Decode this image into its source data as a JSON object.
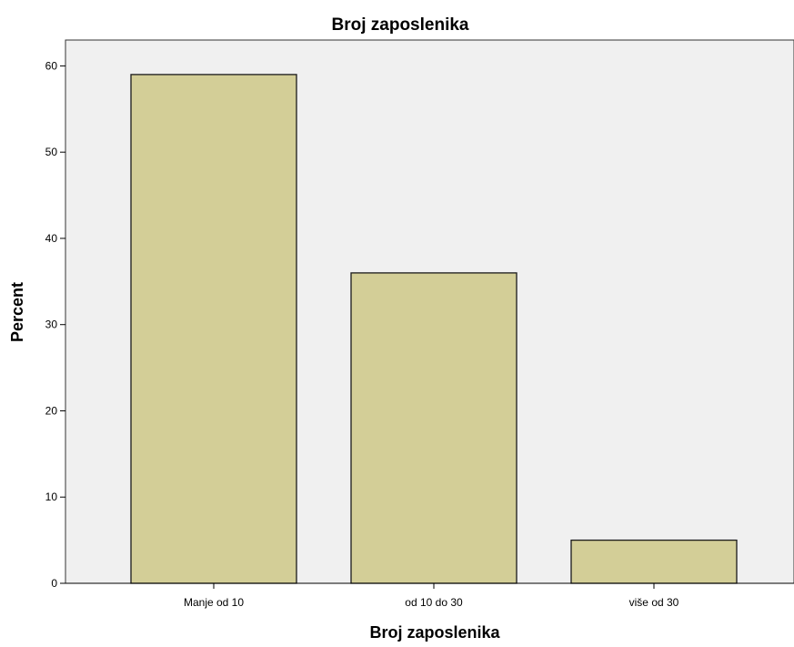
{
  "chart_data": {
    "type": "bar",
    "title": "Broj zaposlenika",
    "xlabel": "Broj zaposlenika",
    "ylabel": "Percent",
    "categories": [
      "Manje od 10",
      "od 10 do 30",
      "više od 30"
    ],
    "values": [
      59,
      36,
      5
    ],
    "ylim": [
      0,
      63
    ],
    "yticks": [
      "0",
      "10",
      "20",
      "30",
      "40",
      "50",
      "60"
    ],
    "grid": false,
    "colors": {
      "bar_fill": "#d3ce97",
      "bar_stroke": "#1a1a1a",
      "plot_background": "#f0f0f0"
    }
  }
}
